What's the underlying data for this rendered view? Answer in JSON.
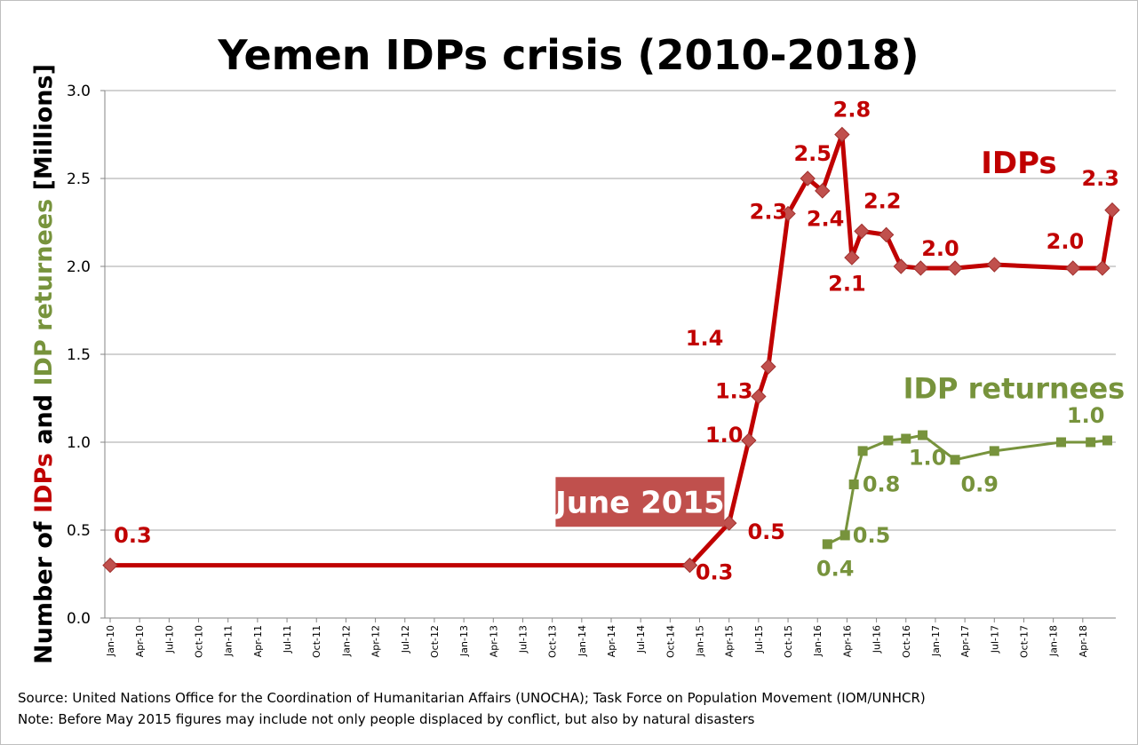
{
  "chart_data": {
    "type": "line",
    "title": "Yemen IDPs crisis (2010-2018)",
    "ylabel_parts": [
      "Number of ",
      "IDPs",
      " and ",
      "IDP returnees",
      "  [Millions]"
    ],
    "ylim": [
      0,
      3.0
    ],
    "yticks": [
      "0.0",
      "0.5",
      "1.0",
      "1.5",
      "2.0",
      "2.5",
      "3.0"
    ],
    "xrange": [
      0,
      102
    ],
    "xticks": [
      {
        "t": 0,
        "label": "Jan-10"
      },
      {
        "t": 3,
        "label": "Apr-10"
      },
      {
        "t": 6,
        "label": "Jul-10"
      },
      {
        "t": 9,
        "label": "Oct-10"
      },
      {
        "t": 12,
        "label": "Jan-11"
      },
      {
        "t": 15,
        "label": "Apr-11"
      },
      {
        "t": 18,
        "label": "Jul-11"
      },
      {
        "t": 21,
        "label": "Oct-11"
      },
      {
        "t": 24,
        "label": "Jan-12"
      },
      {
        "t": 27,
        "label": "Apr-12"
      },
      {
        "t": 30,
        "label": "Jul-12"
      },
      {
        "t": 33,
        "label": "Oct-12"
      },
      {
        "t": 36,
        "label": "Jan-13"
      },
      {
        "t": 39,
        "label": "Apr-13"
      },
      {
        "t": 42,
        "label": "Jul-13"
      },
      {
        "t": 45,
        "label": "Oct-13"
      },
      {
        "t": 48,
        "label": "Jan-14"
      },
      {
        "t": 51,
        "label": "Apr-14"
      },
      {
        "t": 54,
        "label": "Jul-14"
      },
      {
        "t": 57,
        "label": "Oct-14"
      },
      {
        "t": 60,
        "label": "Jan-15"
      },
      {
        "t": 63,
        "label": "Apr-15"
      },
      {
        "t": 66,
        "label": "Jul-15"
      },
      {
        "t": 69,
        "label": "Oct-15"
      },
      {
        "t": 72,
        "label": "Jan-16"
      },
      {
        "t": 75,
        "label": "Apr-16"
      },
      {
        "t": 78,
        "label": "Jul-16"
      },
      {
        "t": 81,
        "label": "Oct-16"
      },
      {
        "t": 84,
        "label": "Jan-17"
      },
      {
        "t": 87,
        "label": "Apr-17"
      },
      {
        "t": 90,
        "label": "Jul-17"
      },
      {
        "t": 93,
        "label": "Oct-17"
      },
      {
        "t": 96,
        "label": "Jan-18"
      },
      {
        "t": 99,
        "label": "Apr-18"
      }
    ],
    "series": [
      {
        "name": "IDPs",
        "color": "#c00000",
        "marker": "diamond",
        "points": [
          {
            "t": 0,
            "y": 0.3
          },
          {
            "t": 59,
            "y": 0.3
          },
          {
            "t": 63,
            "y": 0.54
          },
          {
            "t": 65,
            "y": 1.01
          },
          {
            "t": 66,
            "y": 1.26
          },
          {
            "t": 67,
            "y": 1.43
          },
          {
            "t": 69,
            "y": 2.3
          },
          {
            "t": 71,
            "y": 2.5
          },
          {
            "t": 72.5,
            "y": 2.43
          },
          {
            "t": 74.5,
            "y": 2.75
          },
          {
            "t": 75.5,
            "y": 2.05
          },
          {
            "t": 76.5,
            "y": 2.2
          },
          {
            "t": 79,
            "y": 2.18
          },
          {
            "t": 80.5,
            "y": 2.0
          },
          {
            "t": 82.5,
            "y": 1.99
          },
          {
            "t": 86,
            "y": 1.99
          },
          {
            "t": 90,
            "y": 2.01
          },
          {
            "t": 98,
            "y": 1.99
          },
          {
            "t": 101,
            "y": 1.99
          },
          {
            "t": 102,
            "y": 2.32
          }
        ]
      },
      {
        "name": "IDP returnees",
        "color": "#77933c",
        "marker": "square",
        "points": [
          {
            "t": 73,
            "y": 0.42
          },
          {
            "t": 74.8,
            "y": 0.47
          },
          {
            "t": 75.7,
            "y": 0.76
          },
          {
            "t": 76.6,
            "y": 0.95
          },
          {
            "t": 79.2,
            "y": 1.01
          },
          {
            "t": 81,
            "y": 1.02
          },
          {
            "t": 82.7,
            "y": 1.04
          },
          {
            "t": 86,
            "y": 0.9
          },
          {
            "t": 90,
            "y": 0.95
          },
          {
            "t": 96.8,
            "y": 1.0
          },
          {
            "t": 99.8,
            "y": 1.0
          },
          {
            "t": 101.5,
            "y": 1.01
          }
        ]
      }
    ],
    "data_labels": [
      {
        "series": 0,
        "text": "0.3",
        "t": 2.3,
        "y": 0.43
      },
      {
        "series": 0,
        "text": "0.3",
        "t": 61.5,
        "y": 0.22
      },
      {
        "series": 0,
        "text": "0.5",
        "t": 66.8,
        "y": 0.45
      },
      {
        "series": 0,
        "text": "1.0",
        "t": 62.5,
        "y": 1.0
      },
      {
        "series": 0,
        "text": "1.3",
        "t": 63.5,
        "y": 1.25
      },
      {
        "series": 0,
        "text": "1.4",
        "t": 60.5,
        "y": 1.55
      },
      {
        "series": 0,
        "text": "2.3",
        "t": 67,
        "y": 2.27
      },
      {
        "series": 0,
        "text": "2.5",
        "t": 71.5,
        "y": 2.6
      },
      {
        "series": 0,
        "text": "2.4",
        "t": 72.8,
        "y": 2.23
      },
      {
        "series": 0,
        "text": "2.8",
        "t": 75.5,
        "y": 2.85
      },
      {
        "series": 0,
        "text": "2.1",
        "t": 75,
        "y": 1.86
      },
      {
        "series": 0,
        "text": "2.2",
        "t": 78.6,
        "y": 2.33
      },
      {
        "series": 0,
        "text": "2.0",
        "t": 84.5,
        "y": 2.06
      },
      {
        "series": 0,
        "text": "2.0",
        "t": 97.2,
        "y": 2.1
      },
      {
        "series": 0,
        "text": "2.3",
        "t": 100.8,
        "y": 2.46
      },
      {
        "series": 1,
        "text": "0.4",
        "t": 73.8,
        "y": 0.24
      },
      {
        "series": 1,
        "text": "0.5",
        "t": 77.5,
        "y": 0.43
      },
      {
        "series": 1,
        "text": "0.8",
        "t": 78.5,
        "y": 0.72
      },
      {
        "series": 1,
        "text": "1.0",
        "t": 83.2,
        "y": 0.87
      },
      {
        "series": 1,
        "text": "0.9",
        "t": 88.5,
        "y": 0.72
      },
      {
        "series": 1,
        "text": "1.0",
        "t": 99.3,
        "y": 1.11
      }
    ],
    "annotations": [
      {
        "text": "IDPs",
        "series": 0,
        "t": 92.5,
        "y": 2.53
      },
      {
        "text": "IDP returnees",
        "series": 1,
        "t": 92,
        "y": 1.25
      },
      {
        "text": "June 2015",
        "t": 58,
        "y": 0.63,
        "box": true,
        "box_color": "#c0504d"
      }
    ]
  },
  "source_note": "Source: United Nations Office for the Coordination of Humanitarian Affairs (UNOCHA); Task Force on Population Movement (IOM/UNHCR)",
  "note": "Note: Before May 2015 figures may include not only people displaced by conflict, but also by natural disasters"
}
